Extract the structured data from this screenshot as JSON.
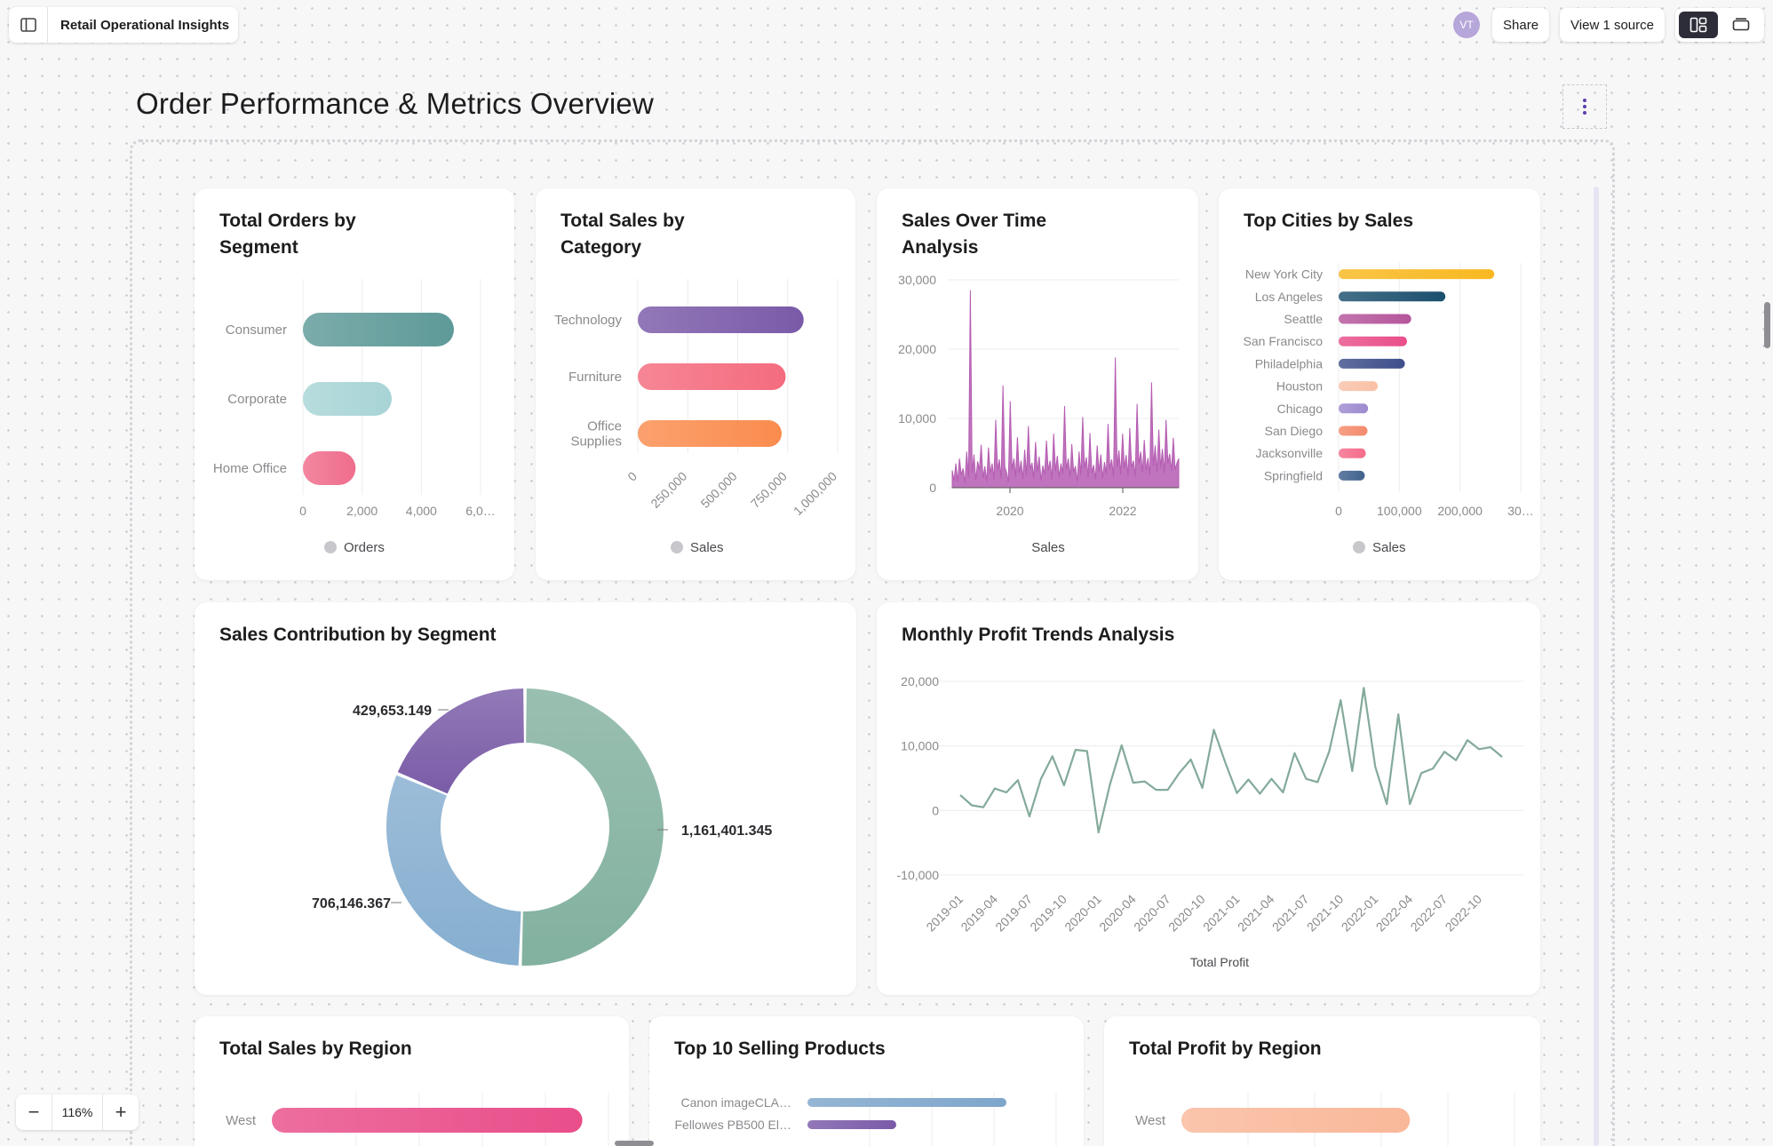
{
  "header": {
    "doc_title": "Retail Operational Insights",
    "avatar_initials": "VT",
    "share_label": "Share",
    "view_source_label": "View 1 source"
  },
  "page": {
    "title": "Order Performance & Metrics Overview"
  },
  "zoom": {
    "minus": "−",
    "value": "116%",
    "plus": "+"
  },
  "cards": {
    "orders_by_segment": "Total Orders by Segment",
    "sales_by_category": "Total Sales by Category",
    "sales_over_time": "Sales Over Time Analysis",
    "top_cities": "Top Cities by Sales",
    "sales_contribution": "Sales Contribution by Segment",
    "monthly_profit": "Monthly Profit Trends Analysis",
    "sales_by_region": "Total Sales by Region",
    "top_products": "Top 10 Selling Products",
    "profit_by_region": "Total Profit by Region"
  },
  "chart_data": [
    {
      "id": "orders_by_segment",
      "type": "bar",
      "orientation": "horizontal",
      "categories": [
        "Consumer",
        "Corporate",
        "Home Office"
      ],
      "values": [
        5100,
        3000,
        1780
      ],
      "xlim": [
        0,
        6000
      ],
      "xticks": [
        "0",
        "2,000",
        "4,000",
        "6,0…"
      ],
      "legend": "Orders",
      "colors": [
        "#5e9a98",
        "#a8d4d6",
        "#ef6d8c"
      ]
    },
    {
      "id": "sales_by_category",
      "type": "bar",
      "orientation": "horizontal",
      "categories": [
        "Technology",
        "Furniture",
        "Office Supplies"
      ],
      "values": [
        830000,
        740000,
        720000
      ],
      "xlim": [
        0,
        1000000
      ],
      "xticks": [
        "0",
        "250,000",
        "500,000",
        "750,000",
        "1,000,000"
      ],
      "legend": "Sales",
      "colors": [
        "#7a5aa8",
        "#f46c7e",
        "#fa8c4e"
      ]
    },
    {
      "id": "sales_over_time",
      "type": "area",
      "ylim": [
        0,
        30000
      ],
      "yticks": [
        "30,000",
        "20,000",
        "10,000",
        "0"
      ],
      "xticks": [
        "2020",
        "2022"
      ],
      "legend": "Sales",
      "color": "#b45cb1",
      "values": [
        2500,
        1000,
        3500,
        900,
        4200,
        1800,
        2800,
        700,
        5200,
        1500,
        28500,
        2200,
        4800,
        1100,
        3800,
        2600,
        6200,
        1400,
        3100,
        900,
        5800,
        2100,
        3500,
        1200,
        9800,
        2500,
        4100,
        1300,
        14800,
        3000,
        2200,
        800,
        12500,
        2600,
        4200,
        1600,
        7300,
        2100,
        3900,
        1300,
        5500,
        1800,
        8900,
        2700,
        3600,
        1400,
        6600,
        2300,
        4500,
        1000,
        3200,
        1900,
        6800,
        2500,
        3900,
        1200,
        7800,
        2400,
        4600,
        1600,
        3500,
        2000,
        11800,
        2600,
        4200,
        1500,
        6300,
        2200,
        3100,
        900,
        5200,
        1800,
        10200,
        2800,
        4400,
        1500,
        7900,
        2100,
        3300,
        1200,
        6100,
        2300,
        4800,
        1400,
        3700,
        2000,
        9200,
        2700,
        4100,
        1600,
        18800,
        3000,
        5400,
        1900,
        7800,
        2800,
        4700,
        1700,
        8600,
        2900,
        3900,
        1600,
        12100,
        3400,
        5200,
        2200,
        6900,
        2500,
        4300,
        1800,
        15200,
        3200,
        6100,
        2300,
        8400,
        2900,
        5600,
        2100,
        9800,
        3500,
        4900,
        2400,
        7200,
        2600,
        3600,
        4200
      ]
    },
    {
      "id": "top_cities",
      "type": "bar",
      "orientation": "horizontal",
      "categories": [
        "New York City",
        "Los Angeles",
        "Seattle",
        "San Francisco",
        "Philadelphia",
        "Houston",
        "Chicago",
        "San Diego",
        "Jacksonville",
        "Springfield"
      ],
      "values": [
        256368,
        175851,
        119541,
        112669,
        109077,
        64505,
        48540,
        47521,
        44713,
        43054
      ],
      "xlim": [
        0,
        300000
      ],
      "xticks": [
        "0",
        "100,000",
        "200,000",
        "30…"
      ],
      "legend": "Sales",
      "colors": [
        "#f8b820",
        "#1b4f6e",
        "#b5559b",
        "#e94e8a",
        "#3d4e8a",
        "#f9c1a6",
        "#9d8ad0",
        "#f48a6c",
        "#f56c8a",
        "#40618d"
      ]
    },
    {
      "id": "sales_contribution",
      "type": "pie",
      "variant": "donut",
      "categories": [
        "Consumer",
        "Corporate",
        "Home Office"
      ],
      "values": [
        1161401.345,
        706146.367,
        429653.149
      ],
      "labels": [
        "1,161,401.345",
        "706,146.367",
        "429,653.149"
      ],
      "colors": [
        "#82b19f",
        "#86aed0",
        "#7a5ca7"
      ]
    },
    {
      "id": "monthly_profit",
      "type": "line",
      "ylim": [
        -10000,
        20000
      ],
      "yticks": [
        "20,000",
        "10,000",
        "0",
        "-10,000"
      ],
      "x": [
        "2019-01",
        "2019-02",
        "2019-03",
        "2019-04",
        "2019-05",
        "2019-06",
        "2019-07",
        "2019-08",
        "2019-09",
        "2019-10",
        "2019-11",
        "2019-12",
        "2020-01",
        "2020-02",
        "2020-03",
        "2020-04",
        "2020-05",
        "2020-06",
        "2020-07",
        "2020-08",
        "2020-09",
        "2020-10",
        "2020-11",
        "2020-12",
        "2021-01",
        "2021-02",
        "2021-03",
        "2021-04",
        "2021-05",
        "2021-06",
        "2021-07",
        "2021-08",
        "2021-09",
        "2021-10",
        "2021-11",
        "2021-12",
        "2022-01",
        "2022-02",
        "2022-03",
        "2022-04",
        "2022-05",
        "2022-06",
        "2022-07",
        "2022-08",
        "2022-09",
        "2022-10",
        "2022-11",
        "2022-12"
      ],
      "xticks": [
        "2019-01",
        "2019-04",
        "2019-07",
        "2019-10",
        "2020-01",
        "2020-04",
        "2020-07",
        "2020-10",
        "2021-01",
        "2021-04",
        "2021-07",
        "2021-10",
        "2022-01",
        "2022-04",
        "2022-07",
        "2022-10"
      ],
      "values": [
        2400,
        800,
        500,
        3400,
        2800,
        4700,
        -900,
        4900,
        8400,
        3900,
        9400,
        9200,
        -3400,
        4100,
        10100,
        4300,
        4500,
        3200,
        3200,
        5800,
        7900,
        3500,
        12500,
        7400,
        2700,
        4800,
        2600,
        4900,
        2800,
        8900,
        4900,
        4400,
        9100,
        17100,
        6100,
        19000,
        6800,
        1000,
        14900,
        1000,
        5800,
        6500,
        9100,
        7800,
        10900,
        9500,
        9800,
        8300
      ],
      "legend": "Total Profit",
      "color": "#84aa9a"
    },
    {
      "id": "sales_by_region",
      "type": "bar",
      "orientation": "horizontal",
      "categories": [
        "West"
      ],
      "values": [
        725458
      ],
      "legend": "Sales",
      "colors": [
        "#e94e8a"
      ]
    },
    {
      "id": "top_products",
      "type": "bar",
      "orientation": "horizontal",
      "categories": [
        "Canon imageCLA…",
        "Fellowes PB500 El…"
      ],
      "values": [
        61600,
        27500
      ],
      "colors": [
        "#7ea6cb",
        "#7a5aa8"
      ]
    },
    {
      "id": "profit_by_region",
      "type": "bar",
      "orientation": "horizontal",
      "categories": [
        "West"
      ],
      "values": [
        108418
      ],
      "colors": [
        "#f9b89a"
      ]
    }
  ]
}
